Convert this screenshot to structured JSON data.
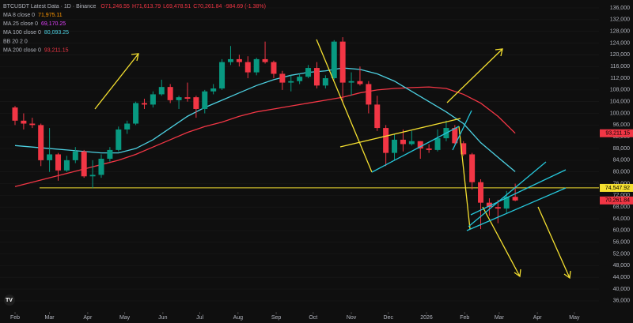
{
  "header": {
    "title": "BTCUSDT Latest Data · 1D · Binance",
    "ohlc": [
      "O71,246.55",
      "H71,613.79",
      "L69,478.51",
      "C70,261.84",
      "-984.69 (-1.38%)"
    ],
    "indicators": [
      {
        "name": "MA 8 close 0",
        "value": "71,975.11",
        "color": "#ff9800"
      },
      {
        "name": "MA 25 close 0",
        "value": "69,170.25",
        "color": "#e040fb"
      },
      {
        "name": "MA 100 close 0",
        "value": "80,093.25",
        "color": "#4dd0e1"
      },
      {
        "name": "BB 20 2 0",
        "value": null,
        "color": "#787b86"
      },
      {
        "name": "MA 200 close 0",
        "value": "93,211.15",
        "color": "#f23645"
      }
    ]
  },
  "chart_data": {
    "type": "candlestick",
    "xlim": [
      -12.2,
      474
    ],
    "ylim": [
      32200,
      138700
    ],
    "xticks": [
      {
        "value": 0,
        "label": "Feb"
      },
      {
        "value": 28,
        "label": "Mar"
      },
      {
        "value": 59,
        "label": "Apr"
      },
      {
        "value": 89,
        "label": "May"
      },
      {
        "value": 120,
        "label": "Jun"
      },
      {
        "value": 150,
        "label": "Jul"
      },
      {
        "value": 181,
        "label": "Aug"
      },
      {
        "value": 212,
        "label": "Sep"
      },
      {
        "value": 242,
        "label": "Oct"
      },
      {
        "value": 273,
        "label": "Nov"
      },
      {
        "value": 303,
        "label": "Dec"
      },
      {
        "value": 334,
        "label": "2026"
      },
      {
        "value": 365,
        "label": "Feb"
      },
      {
        "value": 393,
        "label": "Mar"
      },
      {
        "value": 424,
        "label": "Apr"
      },
      {
        "value": 454,
        "label": "May"
      }
    ],
    "yticks": [
      {
        "value": 36000,
        "label": "36,000"
      },
      {
        "value": 40000,
        "label": "40,000"
      },
      {
        "value": 44000,
        "label": "44,000"
      },
      {
        "value": 48000,
        "label": "48,000"
      },
      {
        "value": 52000,
        "label": "52,000"
      },
      {
        "value": 56000,
        "label": "56,000"
      },
      {
        "value": 60000,
        "label": "60,000"
      },
      {
        "value": 64000,
        "label": "64,000"
      },
      {
        "value": 68000,
        "label": "68,000"
      },
      {
        "value": 72000,
        "label": "72,000"
      },
      {
        "value": 76000,
        "label": "76,000"
      },
      {
        "value": 80000,
        "label": "80,000"
      },
      {
        "value": 84000,
        "label": "84,000"
      },
      {
        "value": 88000,
        "label": "88,000"
      },
      {
        "value": 92000,
        "label": "92,000"
      },
      {
        "value": 96000,
        "label": "96,000"
      },
      {
        "value": 100000,
        "label": "100,000"
      },
      {
        "value": 104000,
        "label": "104,000"
      },
      {
        "value": 108000,
        "label": "108,000"
      },
      {
        "value": 112000,
        "label": "112,000"
      },
      {
        "value": 116000,
        "label": "116,000"
      },
      {
        "value": 120000,
        "label": "120,000"
      },
      {
        "value": 124000,
        "label": "124,000"
      },
      {
        "value": 128000,
        "label": "128,000"
      },
      {
        "value": 132000,
        "label": "132,000"
      },
      {
        "value": 136000,
        "label": "136,000"
      }
    ],
    "up_color": "#089981",
    "down_color": "#f23645",
    "x": [
      0,
      7,
      14,
      21,
      28,
      35,
      42,
      49,
      56,
      63,
      70,
      77,
      84,
      91,
      98,
      105,
      112,
      119,
      126,
      133,
      140,
      147,
      154,
      161,
      168,
      175,
      182,
      189,
      196,
      203,
      210,
      217,
      224,
      231,
      238,
      245,
      252,
      259,
      266,
      273,
      280,
      287,
      294,
      301,
      308,
      315,
      322,
      329,
      336,
      343,
      350,
      357,
      364,
      371,
      378,
      385,
      392,
      399,
      406
    ],
    "open": [
      102000,
      97500,
      96500,
      96000,
      84000,
      86000,
      80500,
      84000,
      87000,
      78500,
      79000,
      84500,
      87500,
      94500,
      96500,
      103500,
      103000,
      106500,
      109000,
      104500,
      105500,
      105500,
      101500,
      107500,
      108500,
      117500,
      118500,
      117500,
      114000,
      118500,
      117500,
      113500,
      110500,
      111000,
      112500,
      115500,
      109500,
      112000,
      124500,
      110500,
      111000,
      110000,
      103000,
      95000,
      86500,
      91000,
      89500,
      90500,
      88000,
      87500,
      91500,
      95000,
      89800,
      86000,
      76500,
      69500,
      68000,
      67500,
      71500
    ],
    "high": [
      102500,
      100000,
      98500,
      96500,
      95000,
      86500,
      85500,
      88500,
      87500,
      84000,
      86000,
      88500,
      95500,
      97500,
      104000,
      105000,
      107500,
      111500,
      110000,
      106000,
      110500,
      106000,
      108000,
      110000,
      118500,
      123000,
      120000,
      119500,
      119000,
      124500,
      118000,
      114500,
      113000,
      113500,
      116500,
      117500,
      113000,
      125000,
      126000,
      114000,
      116000,
      111000,
      106000,
      96000,
      93000,
      94500,
      94000,
      90500,
      89500,
      94500,
      97500,
      96000,
      90500,
      86500,
      77500,
      71000,
      70500,
      73500,
      76000
    ],
    "low": [
      96000,
      94500,
      95000,
      82000,
      80000,
      77000,
      80000,
      83000,
      78000,
      74500,
      78000,
      83500,
      87000,
      93000,
      96000,
      101500,
      102000,
      106000,
      103500,
      101500,
      104000,
      98500,
      100000,
      106500,
      108000,
      116500,
      116000,
      112000,
      113000,
      117000,
      112000,
      108000,
      107500,
      110000,
      112000,
      108500,
      108500,
      111500,
      104000,
      106000,
      109500,
      100000,
      94000,
      82000,
      84000,
      87000,
      89000,
      84500,
      86500,
      87000,
      90500,
      89500,
      85500,
      74000,
      60500,
      65000,
      62500,
      66000,
      70000
    ],
    "close": [
      97500,
      96500,
      96000,
      84000,
      86000,
      80500,
      84000,
      87000,
      78500,
      79000,
      84500,
      87500,
      94500,
      96500,
      103500,
      103000,
      106500,
      109000,
      104500,
      105500,
      105000,
      101500,
      107500,
      108500,
      117500,
      118500,
      117500,
      114000,
      118500,
      117500,
      113500,
      110500,
      111000,
      112500,
      115500,
      109500,
      112000,
      124500,
      110500,
      111000,
      110000,
      103000,
      95000,
      86500,
      91000,
      89500,
      90500,
      88000,
      87500,
      91500,
      95000,
      89800,
      86000,
      76500,
      69500,
      68000,
      67500,
      71500,
      70261.84
    ],
    "series": [
      {
        "name": "MA 200 close 0",
        "color": "#f23645",
        "x": [
          0,
          14,
          28,
          42,
          56,
          70,
          84,
          98,
          112,
          126,
          140,
          154,
          168,
          182,
          196,
          210,
          224,
          238,
          252,
          266,
          280,
          294,
          308,
          322,
          336,
          350,
          364,
          378,
          392,
          406
        ],
        "values": [
          75000,
          76500,
          78000,
          79500,
          81000,
          82500,
          84000,
          86000,
          88500,
          91000,
          93500,
          95500,
          97000,
          99000,
          100500,
          101500,
          102500,
          103500,
          104500,
          105500,
          107000,
          108000,
          108500,
          108800,
          109000,
          108500,
          106500,
          103500,
          99000,
          93211.15
        ]
      },
      {
        "name": "MA 100 close 0",
        "color": "#4dd0e1",
        "x": [
          0,
          14,
          28,
          42,
          56,
          70,
          84,
          98,
          112,
          126,
          140,
          154,
          168,
          182,
          196,
          210,
          224,
          238,
          252,
          266,
          280,
          294,
          308,
          322,
          336,
          350,
          364,
          378,
          392,
          406
        ],
        "values": [
          89000,
          88500,
          88000,
          87500,
          87000,
          86500,
          86500,
          88000,
          91000,
          95000,
          99000,
          102000,
          104500,
          107000,
          109500,
          111500,
          113000,
          114000,
          114500,
          115500,
          115000,
          113500,
          111000,
          107500,
          104000,
          100500,
          96500,
          90000,
          85000,
          80093.25
        ]
      }
    ],
    "hline": 74547.92,
    "price_labels": [
      {
        "value": 93211.15,
        "label": "93,211.15",
        "color": "#f23645"
      },
      {
        "value": 74547.92,
        "label": "74,547.92",
        "color": "#f5e030"
      },
      {
        "value": 70261.84,
        "label": "70,261.84",
        "color": "#f23645"
      }
    ]
  }
}
